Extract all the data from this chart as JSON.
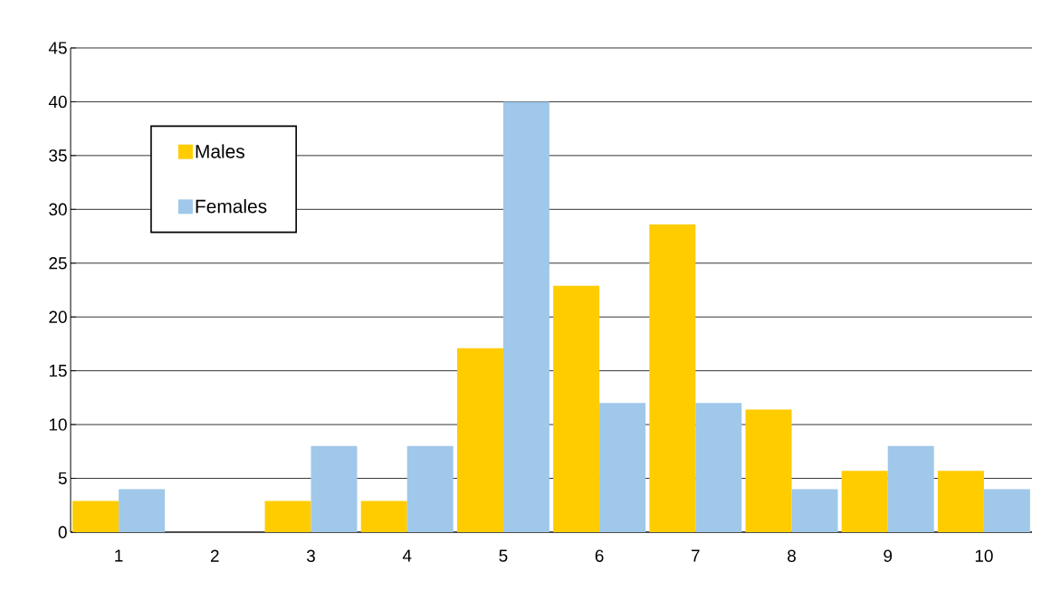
{
  "chart_data": {
    "type": "bar",
    "categories": [
      "1",
      "2",
      "3",
      "4",
      "5",
      "6",
      "7",
      "8",
      "9",
      "10"
    ],
    "series": [
      {
        "name": "Males",
        "color": "#ffcc00",
        "values": [
          2.9,
          0,
          2.9,
          2.9,
          17.1,
          22.9,
          28.6,
          11.4,
          5.7,
          5.7
        ]
      },
      {
        "name": "Females",
        "color": "#9fc8ea",
        "values": [
          4,
          0,
          8,
          8,
          40,
          12,
          12,
          4,
          8,
          4
        ]
      }
    ],
    "ylim": [
      0,
      45
    ],
    "yticks": [
      0,
      5,
      10,
      15,
      20,
      25,
      30,
      35,
      40,
      45
    ],
    "grid": "y",
    "legend": "top left"
  }
}
